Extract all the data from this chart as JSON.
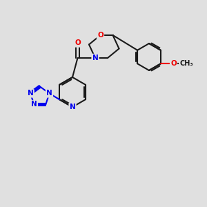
{
  "background_color": "#e0e0e0",
  "bond_color": "#1a1a1a",
  "bond_width": 1.5,
  "atom_colors": {
    "N": "#0000ee",
    "O": "#ee0000",
    "C": "#1a1a1a"
  },
  "font_size_atom": 7.5,
  "fig_bg": "#e0e0e0"
}
